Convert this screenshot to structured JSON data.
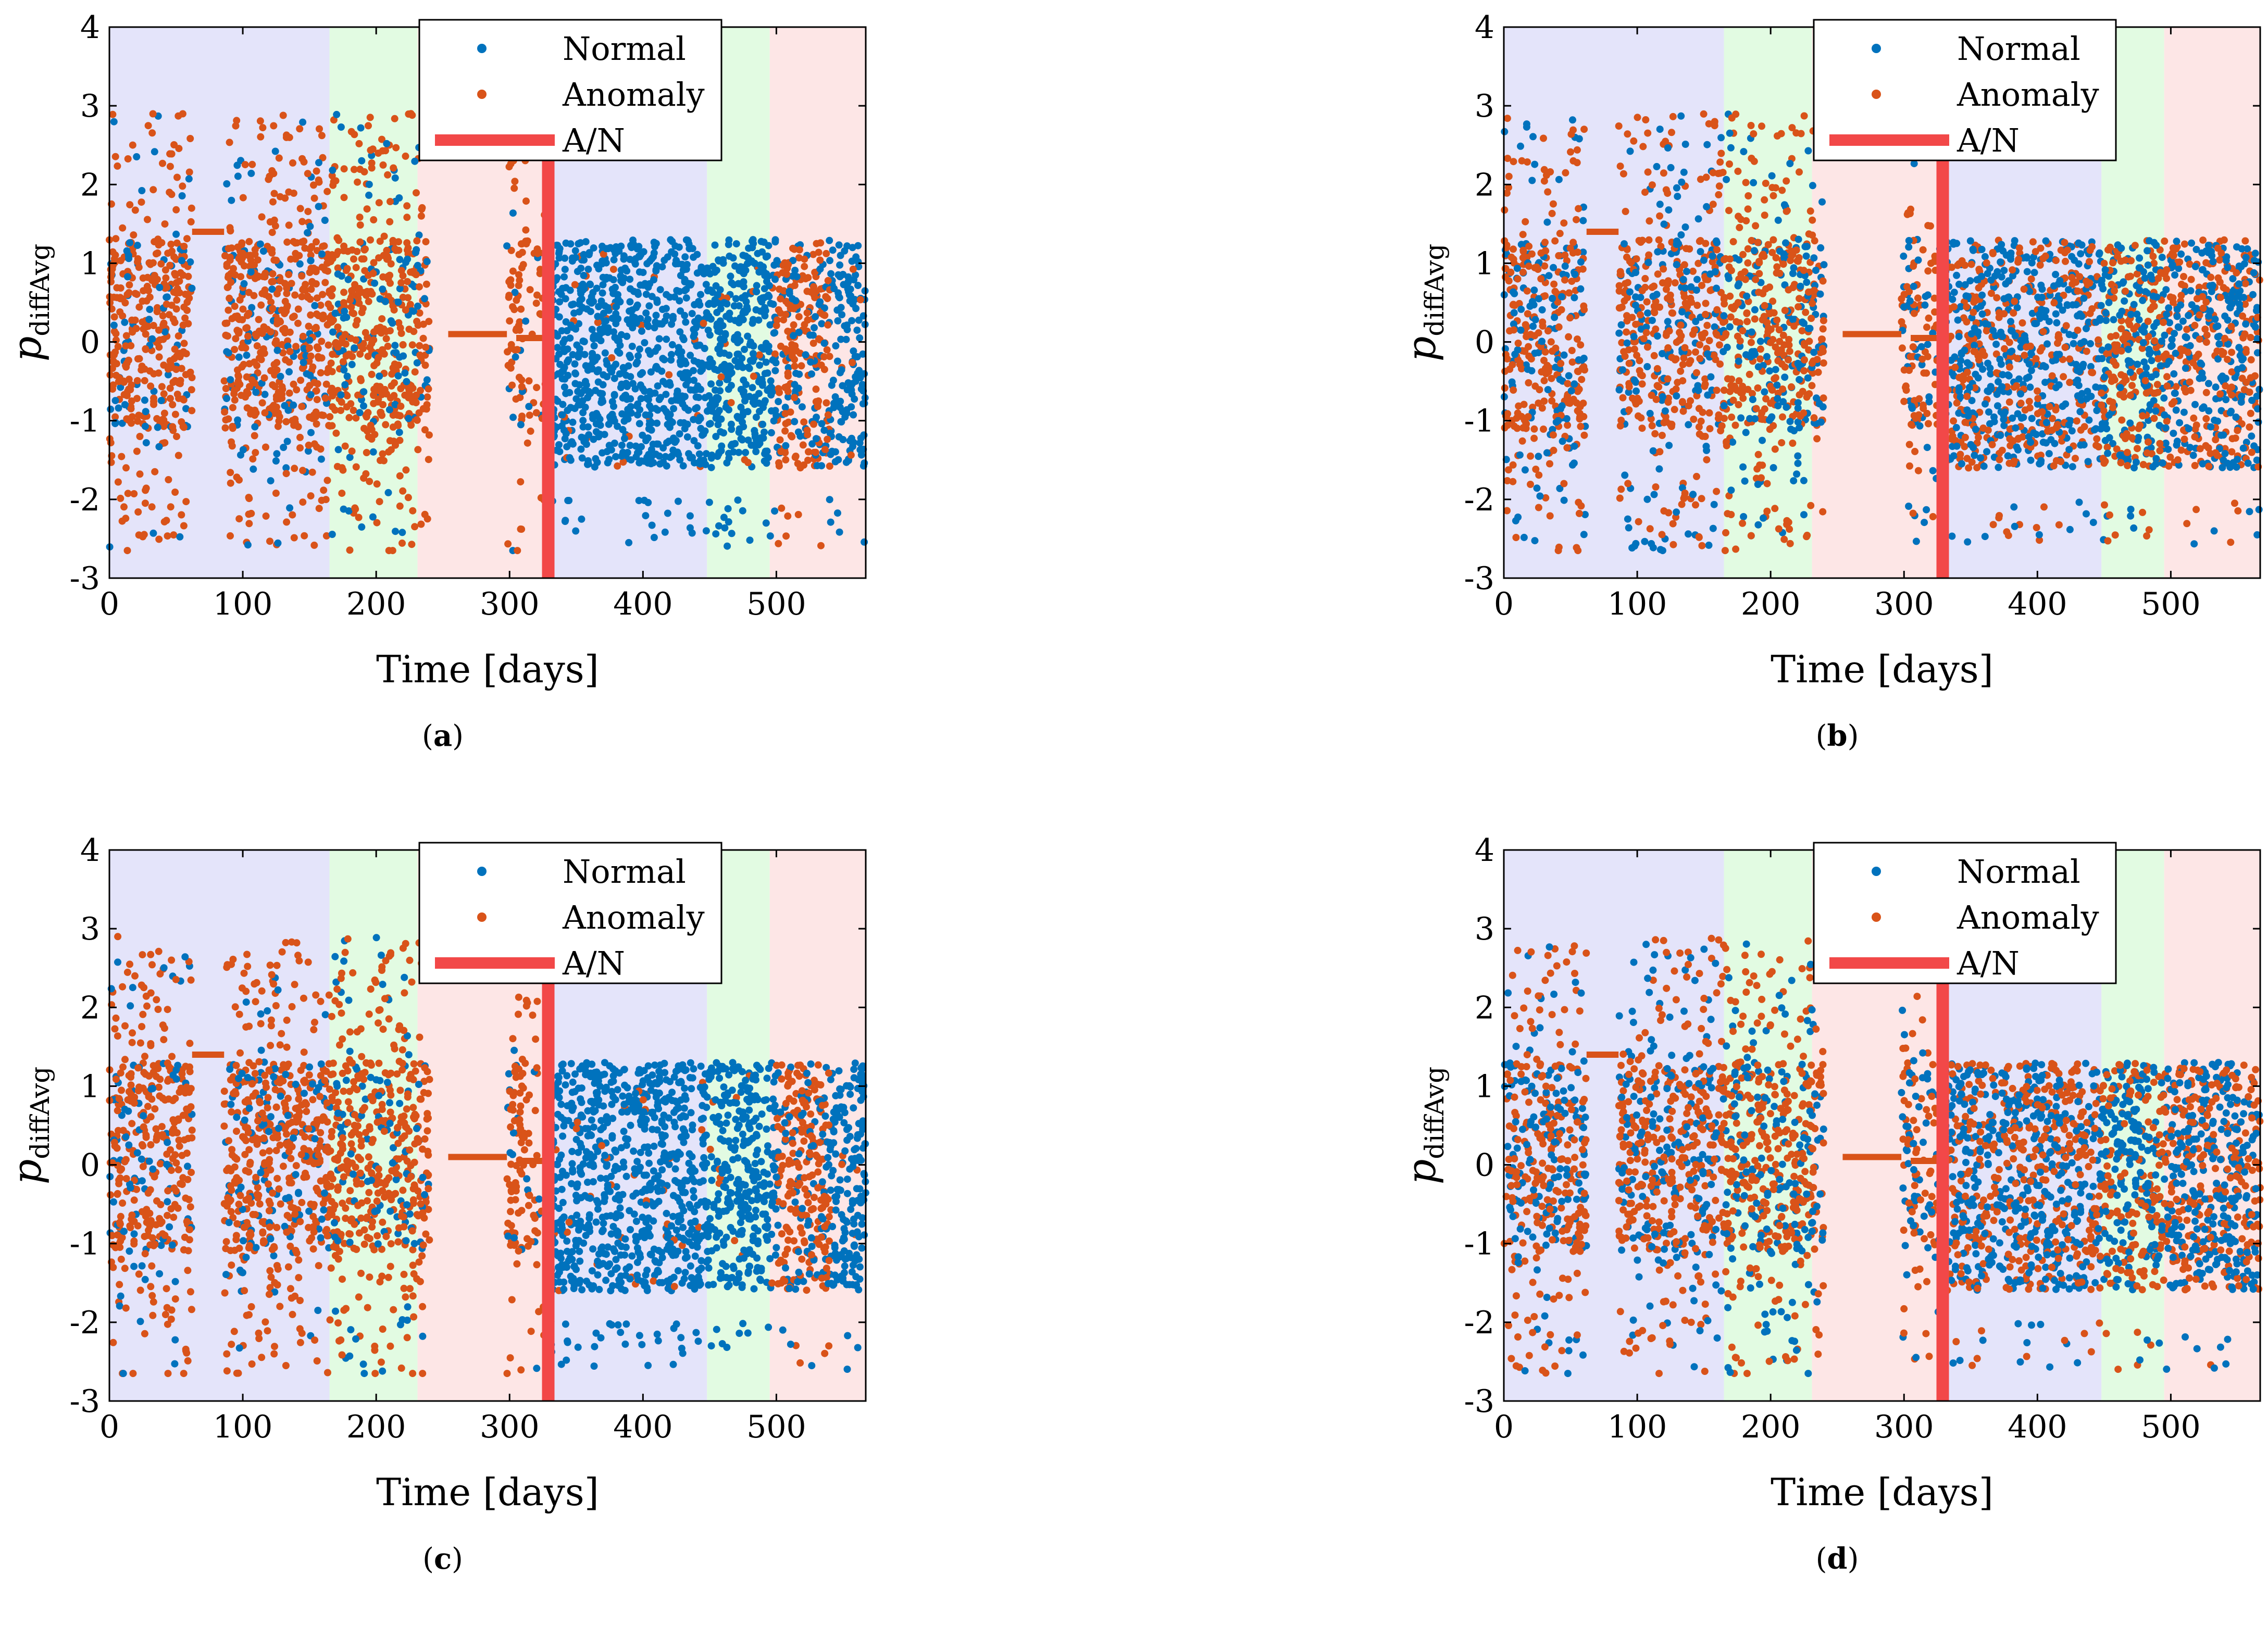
{
  "chart_data": [
    {
      "type": "scatter",
      "panel": "(a)",
      "caption_letter": "a",
      "xlabel": "Time [days]",
      "ylabel_main": "p",
      "ylabel_sub": "diffAvg",
      "xlim": [
        0,
        567
      ],
      "ylim": [
        -3,
        4
      ],
      "xticks": [
        0,
        100,
        200,
        300,
        400,
        500
      ],
      "yticks": [
        -3,
        -2,
        -1,
        0,
        1,
        2,
        3,
        4
      ],
      "legend": {
        "position": "top-right",
        "entries": [
          "Normal",
          "Anomaly",
          "A/N"
        ]
      },
      "bands": [
        {
          "x0": 0,
          "x1": 165,
          "color": "#e4e4fa"
        },
        {
          "x0": 165,
          "x1": 231,
          "color": "#e2fbe2"
        },
        {
          "x0": 231,
          "x1": 331,
          "color": "#fde6e6"
        },
        {
          "x0": 331,
          "x1": 448,
          "color": "#e4e4fa"
        },
        {
          "x0": 448,
          "x1": 495,
          "color": "#e2fbe2"
        },
        {
          "x0": 495,
          "x1": 567,
          "color": "#fde6e6"
        }
      ],
      "an_marker_x": 329,
      "series": [
        {
          "name": "Normal",
          "color": "#0072bd",
          "profile": "late"
        },
        {
          "name": "Anomaly",
          "color": "#d95319",
          "profile": "early"
        }
      ],
      "flat_segments": [
        {
          "x0": 62,
          "x1": 86,
          "y": 1.4
        },
        {
          "x0": 254,
          "x1": 298,
          "y": 0.1
        },
        {
          "x0": 305,
          "x1": 329,
          "y": 0.05
        }
      ]
    },
    {
      "type": "scatter",
      "panel": "(b)",
      "caption_letter": "b",
      "xlabel": "Time [days]",
      "ylabel_main": "p",
      "ylabel_sub": "diffAvg",
      "xlim": [
        0,
        567
      ],
      "ylim": [
        -3,
        4
      ],
      "xticks": [
        0,
        100,
        200,
        300,
        400,
        500
      ],
      "yticks": [
        -3,
        -2,
        -1,
        0,
        1,
        2,
        3,
        4
      ],
      "legend": {
        "position": "top-right",
        "entries": [
          "Normal",
          "Anomaly",
          "A/N"
        ]
      },
      "bands": [
        {
          "x0": 0,
          "x1": 165,
          "color": "#e4e4fa"
        },
        {
          "x0": 165,
          "x1": 231,
          "color": "#e2fbe2"
        },
        {
          "x0": 231,
          "x1": 331,
          "color": "#fde6e6"
        },
        {
          "x0": 331,
          "x1": 448,
          "color": "#e4e4fa"
        },
        {
          "x0": 448,
          "x1": 495,
          "color": "#e2fbe2"
        },
        {
          "x0": 495,
          "x1": 567,
          "color": "#fde6e6"
        }
      ],
      "an_marker_x": 329,
      "series": [
        {
          "name": "Normal",
          "color": "#0072bd",
          "profile": "mixed"
        },
        {
          "name": "Anomaly",
          "color": "#d95319",
          "profile": "mixed"
        }
      ],
      "flat_segments": [
        {
          "x0": 62,
          "x1": 86,
          "y": 1.4
        },
        {
          "x0": 254,
          "x1": 298,
          "y": 0.1
        },
        {
          "x0": 305,
          "x1": 329,
          "y": 0.05
        }
      ]
    },
    {
      "type": "scatter",
      "panel": "(c)",
      "caption_letter": "c",
      "xlabel": "Time [days]",
      "ylabel_main": "p",
      "ylabel_sub": "diffAvg",
      "xlim": [
        0,
        567
      ],
      "ylim": [
        -3,
        4
      ],
      "xticks": [
        0,
        100,
        200,
        300,
        400,
        500
      ],
      "yticks": [
        -3,
        -2,
        -1,
        0,
        1,
        2,
        3,
        4
      ],
      "legend": {
        "position": "top-right",
        "entries": [
          "Normal",
          "Anomaly",
          "A/N"
        ]
      },
      "bands": [
        {
          "x0": 0,
          "x1": 165,
          "color": "#e4e4fa"
        },
        {
          "x0": 165,
          "x1": 231,
          "color": "#e2fbe2"
        },
        {
          "x0": 231,
          "x1": 331,
          "color": "#fde6e6"
        },
        {
          "x0": 331,
          "x1": 448,
          "color": "#e4e4fa"
        },
        {
          "x0": 448,
          "x1": 495,
          "color": "#e2fbe2"
        },
        {
          "x0": 495,
          "x1": 567,
          "color": "#fde6e6"
        }
      ],
      "an_marker_x": 329,
      "series": [
        {
          "name": "Normal",
          "color": "#0072bd",
          "profile": "late"
        },
        {
          "name": "Anomaly",
          "color": "#d95319",
          "profile": "early"
        }
      ],
      "flat_segments": [
        {
          "x0": 62,
          "x1": 86,
          "y": 1.4
        },
        {
          "x0": 254,
          "x1": 298,
          "y": 0.1
        },
        {
          "x0": 305,
          "x1": 329,
          "y": 0.05
        }
      ]
    },
    {
      "type": "scatter",
      "panel": "(d)",
      "caption_letter": "d",
      "xlabel": "Time [days]",
      "ylabel_main": "p",
      "ylabel_sub": "diffAvg",
      "xlim": [
        0,
        567
      ],
      "ylim": [
        -3,
        4
      ],
      "xticks": [
        0,
        100,
        200,
        300,
        400,
        500
      ],
      "yticks": [
        -3,
        -2,
        -1,
        0,
        1,
        2,
        3,
        4
      ],
      "legend": {
        "position": "top-right",
        "entries": [
          "Normal",
          "Anomaly",
          "A/N"
        ]
      },
      "bands": [
        {
          "x0": 0,
          "x1": 165,
          "color": "#e4e4fa"
        },
        {
          "x0": 165,
          "x1": 231,
          "color": "#e2fbe2"
        },
        {
          "x0": 231,
          "x1": 331,
          "color": "#fde6e6"
        },
        {
          "x0": 331,
          "x1": 448,
          "color": "#e4e4fa"
        },
        {
          "x0": 448,
          "x1": 495,
          "color": "#e2fbe2"
        },
        {
          "x0": 495,
          "x1": 567,
          "color": "#fde6e6"
        }
      ],
      "an_marker_x": 329,
      "series": [
        {
          "name": "Normal",
          "color": "#0072bd",
          "profile": "mixed"
        },
        {
          "name": "Anomaly",
          "color": "#d95319",
          "profile": "mixed"
        }
      ],
      "flat_segments": [
        {
          "x0": 62,
          "x1": 86,
          "y": 1.4
        },
        {
          "x0": 254,
          "x1": 298,
          "y": 0.1
        },
        {
          "x0": 305,
          "x1": 329,
          "y": 0.05
        }
      ]
    }
  ],
  "colors": {
    "normal": "#0072bd",
    "anomaly": "#d95319",
    "an_line": "#f24848"
  }
}
